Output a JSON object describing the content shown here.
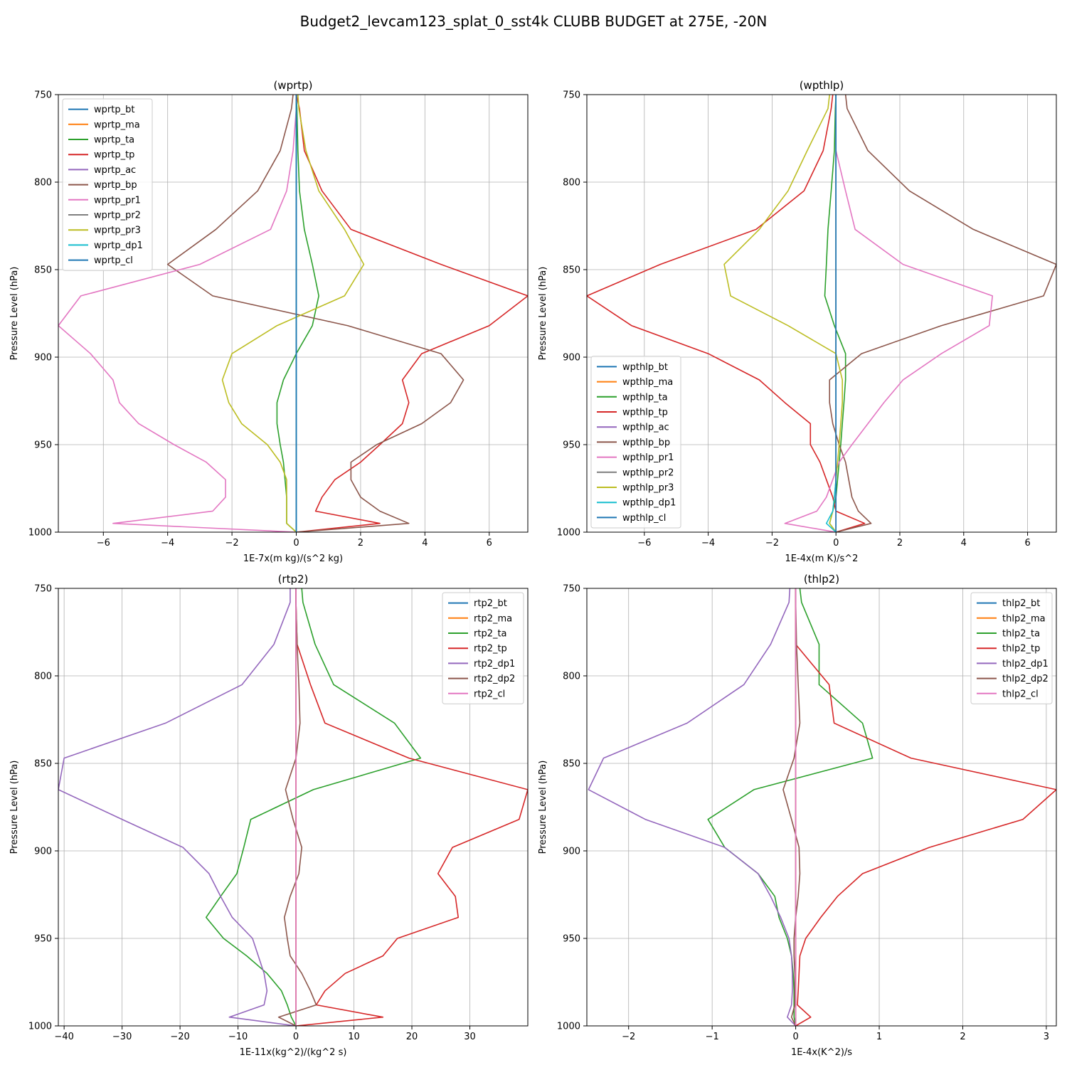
{
  "figure": {
    "title": "Budget2_levcam123_splat_0_sst4k CLUBB BUDGET at 275E, -20N"
  },
  "chart_data": [
    {
      "type": "line",
      "title": "(wprtp)",
      "xlabel": "1E-7x(m kg)/(s^2 kg)",
      "ylabel": "Pressure Level (hPa)",
      "xlim": [
        -7.4,
        7.2
      ],
      "ylim": [
        1000,
        750
      ],
      "xticks": [
        -6,
        -4,
        -2,
        0,
        2,
        4,
        6
      ],
      "yticks": [
        750,
        800,
        850,
        900,
        950,
        1000
      ],
      "grid": true,
      "legend": "top-left",
      "y": [
        750,
        758,
        782,
        805,
        827,
        847,
        865,
        882,
        898,
        913,
        926,
        938,
        950,
        960,
        970,
        980,
        988,
        995,
        1000
      ],
      "series": [
        {
          "name": "wprtp_bt",
          "color": "#1f77b4",
          "values": [
            0,
            0,
            0,
            0,
            0,
            0,
            0,
            0,
            0,
            0,
            0,
            0,
            0,
            0,
            0,
            0,
            0,
            0,
            0
          ]
        },
        {
          "name": "wprtp_ma",
          "color": "#ff7f0e",
          "values": [
            0,
            0,
            0,
            0,
            0,
            0,
            0,
            0,
            0,
            0,
            0,
            0,
            0,
            0,
            0,
            0,
            0,
            0,
            0
          ]
        },
        {
          "name": "wprtp_ta",
          "color": "#2ca02c",
          "values": [
            0,
            0.02,
            0.05,
            0.1,
            0.25,
            0.5,
            0.7,
            0.5,
            0,
            -0.4,
            -0.6,
            -0.6,
            -0.5,
            -0.4,
            -0.35,
            -0.3,
            -0.3,
            -0.3,
            0
          ]
        },
        {
          "name": "wprtp_tp",
          "color": "#d62728",
          "values": [
            0,
            0.1,
            0.25,
            0.8,
            1.7,
            4.5,
            7.2,
            6.0,
            3.9,
            3.3,
            3.5,
            3.3,
            2.6,
            2.0,
            1.2,
            0.8,
            0.6,
            2.6,
            0
          ]
        },
        {
          "name": "wprtp_ac",
          "color": "#9467bd",
          "values": [
            0,
            0,
            0,
            0,
            0,
            0,
            0,
            0,
            0,
            0,
            0,
            0,
            0,
            0,
            0,
            0,
            0,
            0,
            0
          ]
        },
        {
          "name": "wprtp_bp",
          "color": "#8c564b",
          "values": [
            -0.1,
            -0.15,
            -0.5,
            -1.2,
            -2.5,
            -4.0,
            -2.6,
            1.6,
            4.5,
            5.2,
            4.8,
            3.9,
            2.5,
            1.7,
            1.7,
            2.0,
            2.6,
            3.5,
            0
          ]
        },
        {
          "name": "wprtp_pr1",
          "color": "#e377c2",
          "values": [
            0,
            0,
            -0.1,
            -0.3,
            -0.8,
            -3.0,
            -6.7,
            -7.4,
            -6.4,
            -5.7,
            -5.5,
            -4.9,
            -3.8,
            -2.8,
            -2.2,
            -2.2,
            -2.6,
            -5.7,
            0
          ]
        },
        {
          "name": "wprtp_pr2",
          "color": "#7f7f7f",
          "values": [
            0,
            0,
            0,
            0,
            0,
            0,
            0,
            0,
            0,
            0,
            0,
            0,
            0,
            0,
            0,
            0,
            0,
            0,
            0
          ]
        },
        {
          "name": "wprtp_pr3",
          "color": "#bcbd22",
          "values": [
            0.05,
            0.08,
            0.3,
            0.7,
            1.5,
            2.1,
            1.5,
            -0.6,
            -2.0,
            -2.3,
            -2.1,
            -1.7,
            -0.9,
            -0.5,
            -0.3,
            -0.3,
            -0.3,
            -0.3,
            0
          ]
        },
        {
          "name": "wprtp_dp1",
          "color": "#17becf",
          "values": [
            0,
            0,
            0,
            0,
            0,
            0,
            0,
            0,
            0,
            0,
            0,
            0,
            0,
            0,
            0,
            0,
            0,
            0,
            0
          ]
        },
        {
          "name": "wprtp_cl",
          "color": "#1f77b4",
          "values": [
            0,
            0,
            0,
            0,
            0,
            0,
            0,
            0,
            0,
            0,
            0,
            0,
            0,
            0,
            0,
            0,
            0,
            0,
            0
          ]
        }
      ]
    },
    {
      "type": "line",
      "title": "(wpthlp)",
      "xlabel": "1E-4x(m K)/s^2",
      "ylabel": "Pressure Level (hPa)",
      "xlim": [
        -7.8,
        6.9
      ],
      "ylim": [
        1000,
        750
      ],
      "xticks": [
        -6,
        -4,
        -2,
        0,
        2,
        4,
        6
      ],
      "yticks": [
        750,
        800,
        850,
        900,
        950,
        1000
      ],
      "grid": true,
      "legend": "bottom-left",
      "y": [
        750,
        758,
        782,
        805,
        827,
        847,
        865,
        882,
        898,
        913,
        926,
        938,
        950,
        960,
        970,
        980,
        988,
        995,
        1000
      ],
      "series": [
        {
          "name": "wpthlp_bt",
          "color": "#1f77b4",
          "values": [
            0,
            0,
            0,
            0,
            0,
            0,
            0,
            0,
            0,
            0,
            0,
            0,
            0,
            0,
            0,
            0,
            0,
            0,
            0
          ]
        },
        {
          "name": "wpthlp_ma",
          "color": "#ff7f0e",
          "values": [
            0,
            0,
            0,
            0,
            0,
            0,
            0,
            0,
            0,
            0,
            0,
            0,
            0,
            0,
            0,
            0,
            0,
            0,
            0
          ]
        },
        {
          "name": "wpthlp_ta",
          "color": "#2ca02c",
          "values": [
            0,
            -0.02,
            -0.05,
            -0.15,
            -0.25,
            -0.3,
            -0.35,
            -0.05,
            0.3,
            0.3,
            0.25,
            0.2,
            0.15,
            0.1,
            0.05,
            0,
            -0.1,
            -0.2,
            0
          ]
        },
        {
          "name": "wpthlp_tp",
          "color": "#d62728",
          "values": [
            -0.1,
            -0.15,
            -0.4,
            -1.0,
            -2.5,
            -5.5,
            -7.8,
            -6.4,
            -4.0,
            -2.4,
            -1.6,
            -0.8,
            -0.8,
            -0.5,
            -0.3,
            -0.1,
            0,
            0.9,
            0
          ]
        },
        {
          "name": "wpthlp_ac",
          "color": "#9467bd",
          "values": [
            0,
            0,
            0,
            0,
            0,
            0,
            0,
            0,
            0,
            0,
            0,
            0,
            0,
            0,
            0,
            0,
            0,
            0,
            0
          ]
        },
        {
          "name": "wpthlp_bp",
          "color": "#8c564b",
          "values": [
            0.3,
            0.35,
            1.0,
            2.3,
            4.3,
            6.9,
            6.5,
            3.3,
            0.8,
            -0.2,
            -0.2,
            -0.1,
            0.1,
            0.3,
            0.4,
            0.5,
            0.7,
            1.1,
            0
          ]
        },
        {
          "name": "wpthlp_pr1",
          "color": "#e377c2",
          "values": [
            0,
            0,
            0,
            0.3,
            0.6,
            2.1,
            4.9,
            4.8,
            3.3,
            2.1,
            1.5,
            1.0,
            0.5,
            0.1,
            -0.1,
            -0.3,
            -0.6,
            -1.6,
            0
          ]
        },
        {
          "name": "wpthlp_pr2",
          "color": "#7f7f7f",
          "values": [
            0,
            0,
            0,
            0,
            0,
            0,
            0,
            0,
            0,
            0,
            0,
            0,
            0,
            0,
            0,
            0,
            0,
            0,
            0
          ]
        },
        {
          "name": "wpthlp_pr3",
          "color": "#bcbd22",
          "values": [
            -0.2,
            -0.25,
            -0.9,
            -1.5,
            -2.4,
            -3.5,
            -3.3,
            -1.5,
            0,
            0.2,
            0.2,
            0.15,
            0.1,
            0.05,
            0,
            -0.05,
            -0.1,
            -0.2,
            0
          ]
        },
        {
          "name": "wpthlp_dp1",
          "color": "#17becf",
          "values": [
            0,
            0,
            0,
            0,
            0,
            0,
            0,
            0,
            0,
            0,
            0,
            0,
            0,
            0,
            0,
            -0.05,
            -0.1,
            -0.3,
            0
          ]
        },
        {
          "name": "wpthlp_cl",
          "color": "#1f77b4",
          "values": [
            0,
            0,
            0,
            0,
            0,
            0,
            0,
            0,
            0,
            0,
            0,
            0,
            0,
            0,
            0,
            0,
            0,
            0,
            0
          ]
        }
      ]
    },
    {
      "type": "line",
      "title": "(rtp2)",
      "xlabel": "1E-11x(kg^2)/(kg^2 s)",
      "ylabel": "Pressure Level (hPa)",
      "xlim": [
        -41,
        40
      ],
      "ylim": [
        1000,
        750
      ],
      "xticks": [
        -40,
        -30,
        -20,
        -10,
        0,
        10,
        20,
        30
      ],
      "yticks": [
        750,
        800,
        850,
        900,
        950,
        1000
      ],
      "grid": true,
      "legend": "top-right",
      "y": [
        750,
        758,
        782,
        805,
        827,
        847,
        865,
        882,
        898,
        913,
        926,
        938,
        950,
        960,
        970,
        980,
        988,
        995,
        1000
      ],
      "series": [
        {
          "name": "rtp2_bt",
          "color": "#1f77b4",
          "values": [
            0,
            0,
            0,
            0,
            0,
            0,
            0,
            0,
            0,
            0,
            0,
            0,
            0,
            0,
            0,
            0,
            0,
            0,
            0
          ]
        },
        {
          "name": "rtp2_ma",
          "color": "#ff7f0e",
          "values": [
            0,
            0,
            0,
            0,
            0,
            0,
            0,
            0,
            0,
            0,
            0,
            0,
            0,
            0,
            0,
            0,
            0,
            0,
            0
          ]
        },
        {
          "name": "rtp2_ta",
          "color": "#2ca02c",
          "values": [
            1.0,
            1.2,
            3.3,
            6.5,
            17.0,
            21.5,
            3.0,
            -7.8,
            -9.0,
            -10.2,
            -13.0,
            -15.5,
            -12.5,
            -8.5,
            -5.0,
            -2.5,
            -1.5,
            -0.8,
            0
          ]
        },
        {
          "name": "rtp2_tp",
          "color": "#d62728",
          "values": [
            0,
            0,
            0.2,
            2.5,
            5.0,
            19.5,
            40.0,
            38.5,
            27.0,
            24.5,
            27.5,
            28.0,
            17.5,
            15.0,
            8.5,
            5.0,
            3.5,
            15.0,
            0
          ]
        },
        {
          "name": "rtp2_dp1",
          "color": "#9467bd",
          "values": [
            -1.0,
            -1.0,
            -3.8,
            -9.3,
            -22.5,
            -40.0,
            -41.0,
            -30.0,
            -19.5,
            -15.0,
            -13.0,
            -11.0,
            -7.5,
            -6.5,
            -5.5,
            -5.0,
            -5.5,
            -11.5,
            0
          ]
        },
        {
          "name": "rtp2_dp2",
          "color": "#8c564b",
          "values": [
            0,
            0,
            0.2,
            0.5,
            0.7,
            0,
            -1.8,
            -0.5,
            1.0,
            0.5,
            -1.0,
            -2.0,
            -1.5,
            -1.0,
            1.0,
            2.5,
            3.5,
            -3.0,
            0
          ]
        },
        {
          "name": "rtp2_cl",
          "color": "#e377c2",
          "values": [
            0,
            0,
            0,
            0,
            0,
            0,
            0,
            0,
            0,
            0,
            0,
            0,
            0,
            0,
            0,
            0,
            0,
            0,
            0
          ]
        }
      ]
    },
    {
      "type": "line",
      "title": "(thlp2)",
      "xlabel": "1E-4x(K^2)/s",
      "ylabel": "Pressure Level (hPa)",
      "xlim": [
        -2.5,
        3.12
      ],
      "ylim": [
        1000,
        750
      ],
      "xticks": [
        -2,
        -1,
        0,
        1,
        2,
        3
      ],
      "yticks": [
        750,
        800,
        850,
        900,
        950,
        1000
      ],
      "grid": true,
      "legend": "top-right",
      "y": [
        750,
        758,
        782,
        805,
        827,
        847,
        865,
        882,
        898,
        913,
        926,
        938,
        950,
        960,
        970,
        980,
        988,
        995,
        1000
      ],
      "series": [
        {
          "name": "thlp2_bt",
          "color": "#1f77b4",
          "values": [
            0,
            0,
            0,
            0,
            0,
            0,
            0,
            0,
            0,
            0,
            0,
            0,
            0,
            0,
            0,
            0,
            0,
            0,
            0
          ]
        },
        {
          "name": "thlp2_ma",
          "color": "#ff7f0e",
          "values": [
            0,
            0,
            0,
            0,
            0,
            0,
            0,
            0,
            0,
            0,
            0,
            0,
            0,
            0,
            0,
            0,
            0,
            0,
            0
          ]
        },
        {
          "name": "thlp2_ta",
          "color": "#2ca02c",
          "values": [
            0.05,
            0.07,
            0.28,
            0.28,
            0.8,
            0.92,
            -0.5,
            -1.05,
            -0.85,
            -0.45,
            -0.25,
            -0.2,
            -0.1,
            -0.05,
            -0.03,
            -0.02,
            -0.02,
            -0.02,
            0
          ]
        },
        {
          "name": "thlp2_tp",
          "color": "#d62728",
          "values": [
            0,
            0,
            0,
            0.4,
            0.46,
            1.38,
            3.12,
            2.72,
            1.6,
            0.8,
            0.5,
            0.3,
            0.12,
            0.05,
            0.04,
            0.03,
            0.02,
            0.18,
            0
          ]
        },
        {
          "name": "thlp2_dp1",
          "color": "#9467bd",
          "values": [
            -0.07,
            -0.08,
            -0.3,
            -0.62,
            -1.3,
            -2.3,
            -2.48,
            -1.8,
            -0.85,
            -0.45,
            -0.3,
            -0.18,
            -0.08,
            -0.05,
            -0.04,
            -0.04,
            -0.05,
            -0.1,
            0
          ]
        },
        {
          "name": "thlp2_dp2",
          "color": "#8c564b",
          "values": [
            0,
            0,
            0.01,
            0.03,
            0.05,
            -0.02,
            -0.15,
            -0.05,
            0.04,
            0.05,
            0.03,
            0,
            -0.02,
            -0.02,
            -0.01,
            -0.01,
            -0.01,
            -0.05,
            0
          ]
        },
        {
          "name": "thlp2_cl",
          "color": "#e377c2",
          "values": [
            0,
            0,
            0,
            0,
            0,
            0,
            0,
            0,
            0,
            0,
            0,
            0,
            0,
            0,
            0,
            0,
            0,
            0,
            0
          ]
        }
      ]
    }
  ]
}
